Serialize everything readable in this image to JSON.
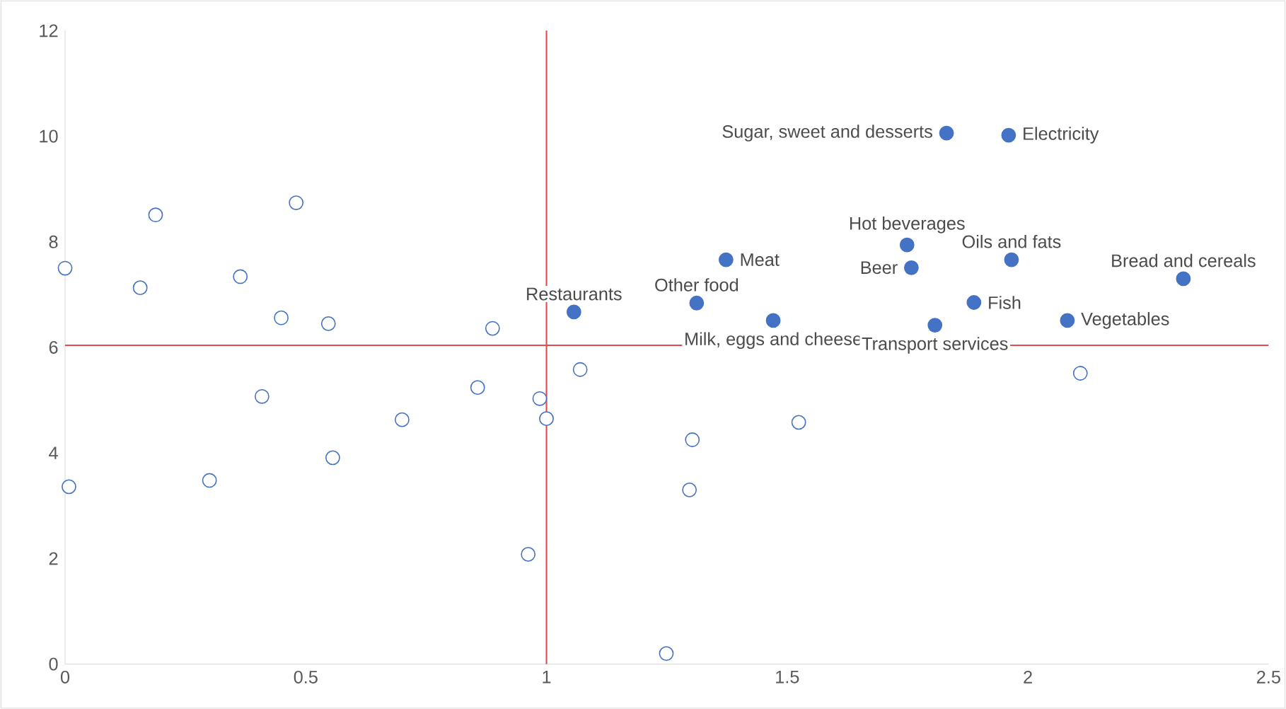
{
  "chart_data": {
    "type": "scatter",
    "xlim": [
      0,
      2.5
    ],
    "ylim": [
      0,
      12
    ],
    "xticks": [
      0,
      0.5,
      1,
      1.5,
      2,
      2.5
    ],
    "yticks": [
      0,
      2,
      4,
      6,
      8,
      10,
      12
    ],
    "grid": false,
    "series": [
      {
        "color": "#4472c4",
        "x": [
          0.0,
          0.008,
          0.156,
          0.188,
          0.3,
          0.364,
          0.409,
          0.449,
          0.48,
          0.547,
          0.556,
          0.7,
          0.857,
          0.888,
          0.962,
          0.986,
          1.0,
          1.07,
          1.303,
          1.297,
          1.249,
          1.524,
          2.109
        ],
        "values": [
          7.5,
          3.36,
          7.13,
          8.51,
          3.48,
          7.34,
          5.07,
          6.56,
          8.74,
          6.45,
          3.91,
          4.63,
          5.24,
          6.36,
          2.08,
          5.03,
          4.65,
          5.58,
          4.25,
          3.3,
          0.2,
          4.58,
          5.51
        ]
      },
      {
        "color": "#4472c4",
        "x": [
          1.057,
          1.312,
          1.373,
          1.471,
          1.749,
          1.758,
          1.831,
          1.807,
          1.888,
          1.96,
          1.966,
          2.082,
          2.323
        ],
        "values": [
          6.67,
          6.84,
          7.66,
          6.51,
          7.94,
          7.51,
          10.06,
          6.42,
          6.85,
          10.02,
          7.66,
          6.51,
          7.3
        ]
      }
    ],
    "ref_lines": [
      {
        "axis": "x",
        "value": 1,
        "color": "#e8494f"
      },
      {
        "axis": "y",
        "value": 6.04,
        "color": "#e8494f"
      }
    ],
    "annotations": [
      {
        "text": "Restaurants",
        "x": 1.057,
        "y": 6.67
      },
      {
        "text": "Other food",
        "x": 1.312,
        "y": 6.84
      },
      {
        "text": "Meat",
        "x": 1.373,
        "y": 7.66
      },
      {
        "text": "Milk, eggs and cheese",
        "x": 1.471,
        "y": 6.51
      },
      {
        "text": "Hot beverages",
        "x": 1.749,
        "y": 7.94
      },
      {
        "text": "Beer",
        "x": 1.758,
        "y": 7.51
      },
      {
        "text": "Sugar, sweet and desserts",
        "x": 1.831,
        "y": 10.06
      },
      {
        "text": "Transport services",
        "x": 1.807,
        "y": 6.42
      },
      {
        "text": "Fish",
        "x": 1.888,
        "y": 6.85
      },
      {
        "text": "Electricity",
        "x": 1.96,
        "y": 10.02
      },
      {
        "text": "Oils and fats",
        "x": 1.966,
        "y": 7.66
      },
      {
        "text": "Vegetables",
        "x": 2.082,
        "y": 6.51
      },
      {
        "text": "Bread and cereals",
        "x": 2.323,
        "y": 7.3
      }
    ]
  }
}
